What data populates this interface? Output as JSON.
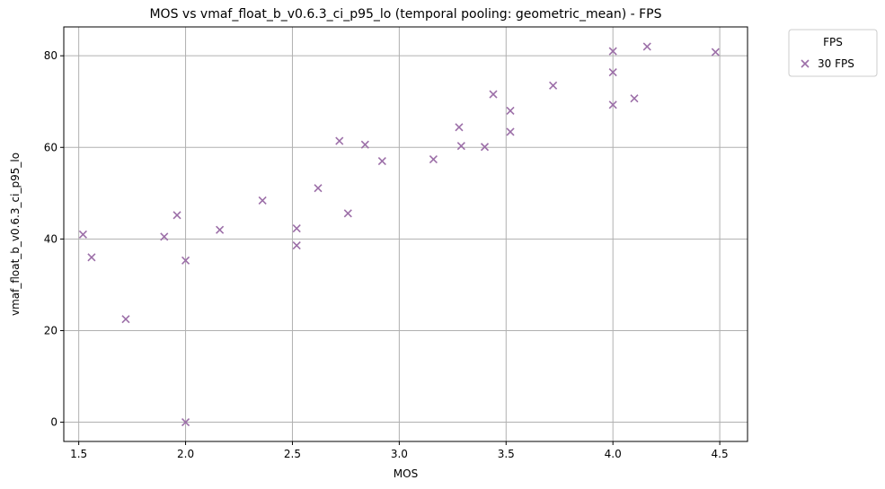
{
  "chart_data": {
    "type": "scatter",
    "title": "MOS vs vmaf_float_b_v0.6.3_ci_p95_lo (temporal pooling: geometric_mean) - FPS",
    "xlabel": "MOS",
    "ylabel": "vmaf_float_b_v0.6.3_ci_p95_lo",
    "xlim": [
      1.43,
      4.63
    ],
    "ylim": [
      -4.2,
      86.3
    ],
    "xticks": [
      1.5,
      2.0,
      2.5,
      3.0,
      3.5,
      4.0,
      4.5
    ],
    "xtick_labels": [
      "1.5",
      "2.0",
      "2.5",
      "3.0",
      "3.5",
      "4.0",
      "4.5"
    ],
    "yticks": [
      0,
      20,
      40,
      60,
      80
    ],
    "ytick_labels": [
      "0",
      "20",
      "40",
      "60",
      "80"
    ],
    "grid": true,
    "legend": {
      "title": "FPS",
      "placement": "outside-top-right"
    },
    "series": [
      {
        "name": "30 FPS",
        "marker": "x",
        "color": "#9c6fa8",
        "points": [
          {
            "x": 1.52,
            "y": 41.0
          },
          {
            "x": 1.56,
            "y": 36.0
          },
          {
            "x": 1.72,
            "y": 22.5
          },
          {
            "x": 1.9,
            "y": 40.5
          },
          {
            "x": 1.96,
            "y": 45.2
          },
          {
            "x": 2.0,
            "y": 35.3
          },
          {
            "x": 2.0,
            "y": 0.0
          },
          {
            "x": 2.16,
            "y": 42.0
          },
          {
            "x": 2.36,
            "y": 48.4
          },
          {
            "x": 2.52,
            "y": 42.3
          },
          {
            "x": 2.52,
            "y": 38.6
          },
          {
            "x": 2.62,
            "y": 51.1
          },
          {
            "x": 2.72,
            "y": 61.4
          },
          {
            "x": 2.76,
            "y": 45.6
          },
          {
            "x": 2.84,
            "y": 60.6
          },
          {
            "x": 2.92,
            "y": 57.0
          },
          {
            "x": 3.16,
            "y": 57.4
          },
          {
            "x": 3.28,
            "y": 64.4
          },
          {
            "x": 3.29,
            "y": 60.3
          },
          {
            "x": 3.4,
            "y": 60.1
          },
          {
            "x": 3.44,
            "y": 71.6
          },
          {
            "x": 3.52,
            "y": 68.0
          },
          {
            "x": 3.52,
            "y": 63.4
          },
          {
            "x": 3.72,
            "y": 73.5
          },
          {
            "x": 4.0,
            "y": 81.0
          },
          {
            "x": 4.0,
            "y": 76.4
          },
          {
            "x": 4.0,
            "y": 69.3
          },
          {
            "x": 4.1,
            "y": 70.7
          },
          {
            "x": 4.16,
            "y": 82.0
          },
          {
            "x": 4.48,
            "y": 80.8
          }
        ]
      }
    ]
  }
}
